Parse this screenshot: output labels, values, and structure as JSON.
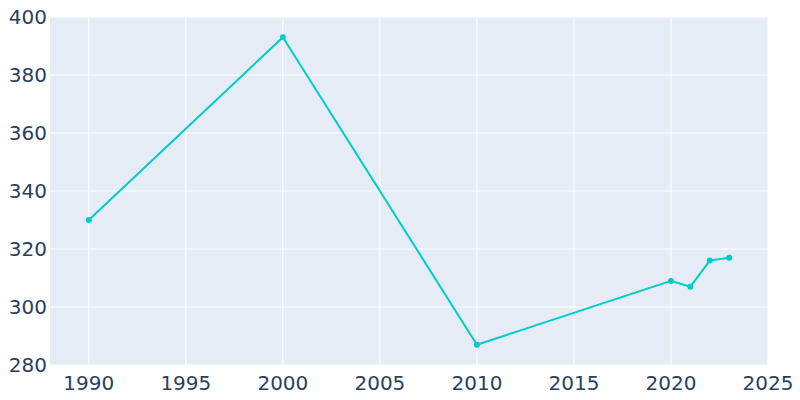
{
  "chart_data": {
    "type": "line",
    "x": [
      1990,
      2000,
      2010,
      2020,
      2021,
      2022,
      2023
    ],
    "values": [
      330,
      393,
      287,
      309,
      307,
      316,
      317
    ],
    "color": "#00cccc",
    "marker": "circle",
    "xlim": [
      1988,
      2025
    ],
    "xticks": [
      1990,
      1995,
      2000,
      2005,
      2010,
      2015,
      2020,
      2025
    ],
    "ylim": [
      280,
      400
    ],
    "yticks": [
      280,
      300,
      320,
      340,
      360,
      380,
      400
    ],
    "grid": true
  }
}
